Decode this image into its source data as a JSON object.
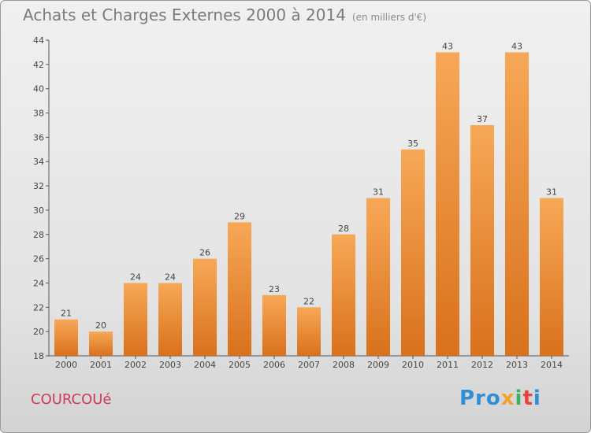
{
  "title": "Achats et Charges Externes 2000 à 2014",
  "subtitle": "(en milliers d'€)",
  "commune": "COURCOUé",
  "logo": {
    "p1": "Pro",
    "p2": "x",
    "p3": "i",
    "p4": "t",
    "p5": "i"
  },
  "colors": {
    "bar_top": "#f7a857",
    "bar_bottom": "#d9711c",
    "title": "#7a7a7a",
    "commune": "#d1395b"
  },
  "chart_data": {
    "type": "bar",
    "title": "Achats et Charges Externes 2000 à 2014",
    "subtitle": "(en milliers d'€)",
    "categories": [
      "2000",
      "2001",
      "2002",
      "2003",
      "2004",
      "2005",
      "2006",
      "2007",
      "2008",
      "2009",
      "2010",
      "2011",
      "2012",
      "2013",
      "2014"
    ],
    "values": [
      21,
      20,
      24,
      24,
      26,
      29,
      23,
      22,
      28,
      31,
      35,
      43,
      37,
      43,
      31
    ],
    "ylim": [
      18,
      44
    ],
    "yticks": [
      18,
      20,
      22,
      24,
      26,
      28,
      30,
      32,
      34,
      36,
      38,
      40,
      42,
      44
    ],
    "grid": false,
    "legend": "none"
  }
}
